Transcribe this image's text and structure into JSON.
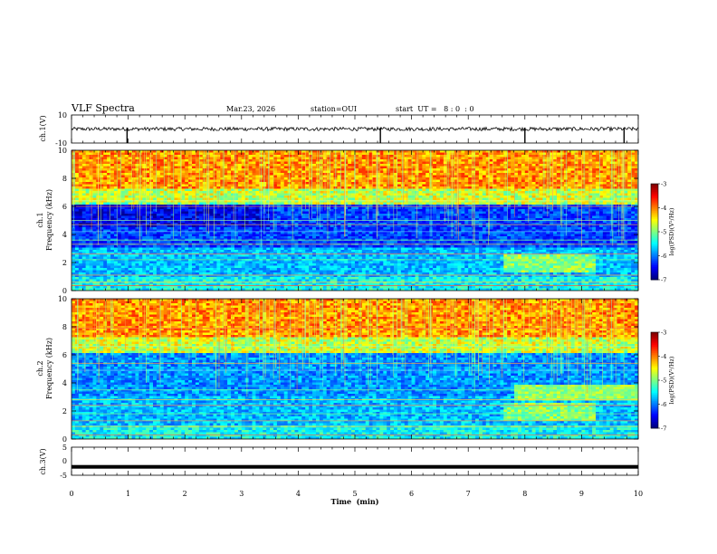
{
  "header": {
    "title": "VLF Spectra",
    "date": "Mar.23, 2026",
    "station": "station=OUI",
    "start": "start  UT =   8 : 0  : 0"
  },
  "chart_data": [
    {
      "name": "ch1-waveform",
      "type": "line",
      "ylabel": "ch.1(V)",
      "ylim": [
        -10,
        10
      ],
      "yticks": [
        "10",
        "-10"
      ],
      "xlim": [
        0,
        10
      ],
      "baseline": 0,
      "spikes_at_min": [
        0.98,
        5.45,
        8.0,
        9.75
      ]
    },
    {
      "name": "ch1-spectrogram",
      "type": "heatmap",
      "ylabel": "ch.1\nFrequency  (kHz)",
      "ylim": [
        0,
        10
      ],
      "yticks": [
        "0",
        "2",
        "4",
        "6",
        "8",
        "10"
      ],
      "xlim": [
        0,
        10
      ],
      "colorbar": {
        "label": "log(PSD)(V²/Hz)",
        "range": [
          -7,
          -3
        ],
        "ticks": [
          "-3",
          "-4",
          "-5",
          "-6",
          "-7"
        ]
      }
    },
    {
      "name": "ch2-spectrogram",
      "type": "heatmap",
      "ylabel": "ch.2\nFrequency  (kHz)",
      "ylim": [
        0,
        10
      ],
      "yticks": [
        "0",
        "2",
        "4",
        "6",
        "8",
        "10"
      ],
      "xlim": [
        0,
        10
      ],
      "colorbar": {
        "label": "log(PSD)(V²/Hz)",
        "range": [
          -7,
          -3
        ],
        "ticks": [
          "-3",
          "-4",
          "-5",
          "-6",
          "-7"
        ]
      }
    },
    {
      "name": "ch3-waveform",
      "type": "line",
      "ylabel": "ch.3(V)",
      "ylim": [
        -5,
        5
      ],
      "yticks": [
        "5",
        "0",
        "-5"
      ],
      "xlim": [
        0,
        10
      ],
      "constant_value": -2
    }
  ],
  "xaxis": {
    "label": "Time  (min)",
    "ticks": [
      "0",
      "1",
      "2",
      "3",
      "4",
      "5",
      "6",
      "7",
      "8",
      "9",
      "10"
    ]
  }
}
